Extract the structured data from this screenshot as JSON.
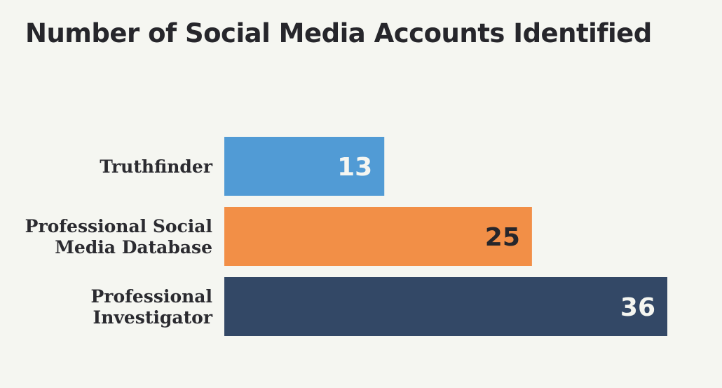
{
  "chart_data": {
    "type": "bar",
    "orientation": "horizontal",
    "title": "Number of Social Media Accounts Identified",
    "xlabel": "",
    "ylabel": "",
    "grid": false,
    "legend": "none",
    "xlim": [
      0,
      36
    ],
    "categories": [
      [
        "Truthfinder"
      ],
      [
        "Professional Social",
        "Media Database"
      ],
      [
        "Professional",
        "Investigator"
      ]
    ],
    "values": [
      13,
      25,
      36
    ],
    "value_labels": [
      "13",
      "25",
      "36"
    ],
    "bar_colors": [
      "#519bd5",
      "#f28f47",
      "#334866"
    ],
    "value_label_colors": [
      "#f5f6f1",
      "#26262b",
      "#f5f6f1"
    ]
  }
}
